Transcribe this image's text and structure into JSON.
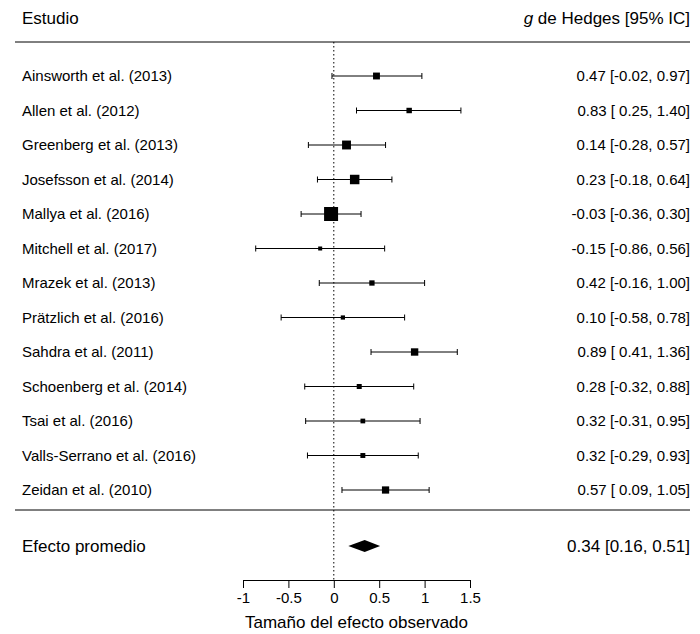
{
  "chart_data": {
    "type": "forest",
    "study_header": "Estudio",
    "effect_header": "g de Hedges [95% IC]",
    "x_label": "Tamaño del efecto observado",
    "categories": [
      "Ainsworth et al. (2013)",
      "Allen et al. (2012)",
      "Greenberg et al. (2013)",
      "Josefsson et al. (2014)",
      "Mallya et al. (2016)",
      "Mitchell et al. (2017)",
      "Mrazek et al. (2013)",
      "Prätzlich et al. (2016)",
      "Sahdra et al. (2011)",
      "Schoenberg et al. (2014)",
      "Tsai et al. (2016)",
      "Valls-Serrano et al. (2016)",
      "Zeidan et al. (2010)"
    ],
    "values": [
      0.47,
      0.83,
      0.14,
      0.23,
      -0.03,
      -0.15,
      0.42,
      0.1,
      0.89,
      0.28,
      0.32,
      0.32,
      0.57
    ],
    "ci_lower": [
      -0.02,
      0.25,
      -0.28,
      -0.18,
      -0.36,
      -0.86,
      -0.16,
      -0.58,
      0.41,
      -0.32,
      -0.31,
      -0.29,
      0.09
    ],
    "ci_upper": [
      0.97,
      1.4,
      0.57,
      0.64,
      0.3,
      0.56,
      1.0,
      0.78,
      1.36,
      0.88,
      0.95,
      0.93,
      1.05
    ],
    "weights": [
      7.9,
      5.9,
      10.7,
      11.5,
      17.8,
      3.9,
      5.7,
      4.2,
      8.6,
      5.3,
      4.9,
      5.2,
      8.4
    ],
    "value_labels": [
      "0.47 [-0.02, 0.97]",
      "0.83 [ 0.25, 1.40]",
      "0.14 [-0.28, 0.57]",
      "0.23 [-0.18, 0.64]",
      "-0.03 [-0.36, 0.30]",
      "-0.15 [-0.86, 0.56]",
      "0.42 [-0.16, 1.00]",
      "0.10 [-0.58, 0.78]",
      "0.89 [ 0.41, 1.36]",
      "0.28 [-0.32, 0.88]",
      "0.32 [-0.31, 0.95]",
      "0.32 [-0.29, 0.93]",
      "0.57 [ 0.09, 1.05]"
    ],
    "summary": {
      "label": "Efecto promedio",
      "value": 0.34,
      "ci_lower": 0.16,
      "ci_upper": 0.51,
      "value_label": "0.34 [0.16, 0.51]"
    },
    "reference_line": 0,
    "color": "#000000",
    "xlim": [
      -1,
      1.5
    ],
    "xticks": [
      -1,
      -0.5,
      0,
      0.5,
      1,
      1.5
    ]
  }
}
